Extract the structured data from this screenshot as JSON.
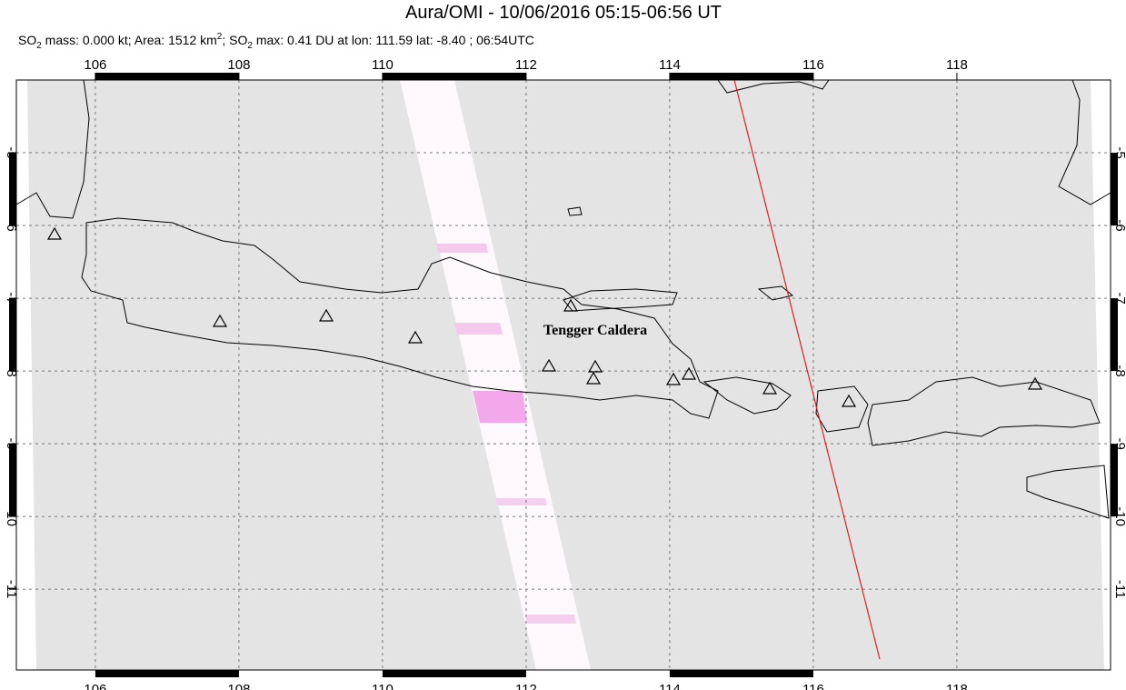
{
  "header": {
    "title": "Aura/OMI - 10/06/2016 05:15-06:56 UT",
    "subtitle": [
      "SO",
      "2",
      " mass: 0.000 kt; Area: 1512 km",
      "2",
      "; SO",
      "2",
      " max: 0.41 DU at lon: 111.59 lat: -8.40 ; 06:54UTC"
    ]
  },
  "map": {
    "lonlim": [
      104.9,
      120.14
    ],
    "latlim": [
      -12.11,
      -4.0
    ],
    "lonticks": [
      106,
      108,
      110,
      112,
      114,
      116,
      118
    ],
    "latticks": [
      -5,
      -6,
      -7,
      -8,
      -9,
      -10,
      -11
    ],
    "label": "Tengger Caldera"
  }
}
